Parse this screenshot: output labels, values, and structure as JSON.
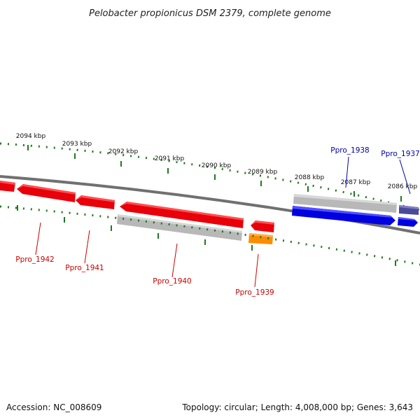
{
  "title": "Pelobacter propionicus DSM 2379, complete genome",
  "footer": {
    "accession": "Accession: NC_008609",
    "summary": "Topology: circular; Length: 4,008,000 bp; Genes: 3,643"
  },
  "colors": {
    "background": "#ffffff",
    "backbone": "#808080",
    "ticks": "#1f7a1f",
    "reverse_strand_gene": "#e8000a",
    "forward_strand_gene": "#0000e0",
    "pseudo_or_gap": "#b0b0b0",
    "rna_or_other": "#ff8c00",
    "dark_gene": "#3c3c88",
    "reverse_label": "#cc0000",
    "forward_label": "#0000aa"
  },
  "kbp_markers": [
    "2094 kbp",
    "2093 kbp",
    "2092 kbp",
    "2091 kbp",
    "2090 kbp",
    "2089 kbp",
    "2088 kbp",
    "2087 kbp",
    "2086 kbp"
  ],
  "gene_labels": [
    {
      "text": "Ppro_1942",
      "strand": "reverse"
    },
    {
      "text": "Ppro_1941",
      "strand": "reverse"
    },
    {
      "text": "Ppro_1940",
      "strand": "reverse"
    },
    {
      "text": "Ppro_1939",
      "strand": "reverse"
    },
    {
      "text": "Ppro_1938",
      "strand": "forward"
    },
    {
      "text": "Ppro_1937",
      "strand": "forward"
    }
  ]
}
